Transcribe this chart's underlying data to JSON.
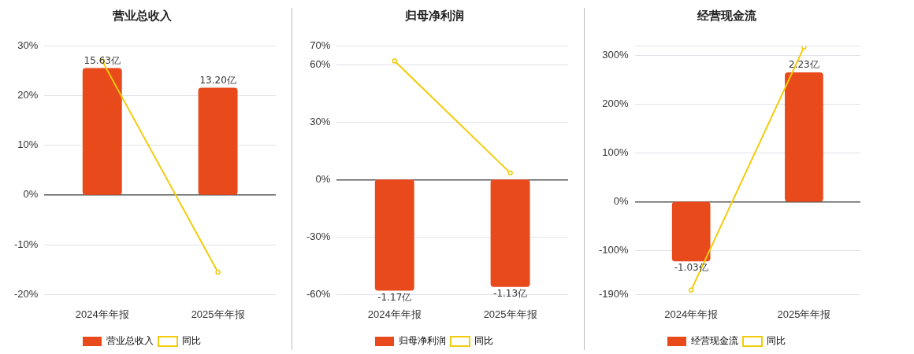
{
  "chart_data": [
    {
      "type": "bar",
      "title": "营业总收入",
      "categories": [
        "2024年年报",
        "2025年年报"
      ],
      "series": [
        {
          "name": "营业总收入",
          "axis": "y2",
          "color": "#e84a1c",
          "values": [
            15.63,
            13.2
          ],
          "value_labels": [
            "15.63亿",
            "13.20亿"
          ]
        },
        {
          "name": "同比",
          "type": "line",
          "axis": "y",
          "color": "#f2cc0c",
          "values": [
            26.9,
            -15.5
          ]
        }
      ],
      "ylim": [
        -20,
        30
      ],
      "yticks": [
        {
          "value": -20,
          "label": "-20%"
        },
        {
          "value": -10,
          "label": "-10%"
        },
        {
          "value": 0,
          "label": "0%"
        },
        {
          "value": 10,
          "label": "10%"
        },
        {
          "value": 20,
          "label": "20%"
        },
        {
          "value": 30,
          "label": "30%"
        }
      ],
      "y2lim": [
        -12.26,
        18.39
      ],
      "grid": "y",
      "legend": "bottom",
      "marker": "circle"
    },
    {
      "type": "bar",
      "title": "归母净利润",
      "categories": [
        "2024年年报",
        "2025年年报"
      ],
      "series": [
        {
          "name": "归母净利润",
          "axis": "y2",
          "color": "#e84a1c",
          "values": [
            -1.17,
            -1.13
          ],
          "value_labels": [
            "-1.17亿",
            "-1.13亿"
          ]
        },
        {
          "name": "同比",
          "type": "line",
          "axis": "y",
          "color": "#f2cc0c",
          "values": [
            62,
            3.5
          ]
        }
      ],
      "ylim": [
        -60,
        70
      ],
      "yticks": [
        {
          "value": -60,
          "label": "-60%"
        },
        {
          "value": -30,
          "label": "-30%"
        },
        {
          "value": 0,
          "label": "0%"
        },
        {
          "value": 30,
          "label": "30%"
        },
        {
          "value": 60,
          "label": "60%"
        },
        {
          "value": 70,
          "label": "70%"
        }
      ],
      "y2lim": [
        -1.21,
        1.41
      ],
      "grid": "y",
      "legend": "bottom",
      "marker": "circle"
    },
    {
      "type": "bar",
      "title": "经营现金流",
      "categories": [
        "2024年年报",
        "2025年年报"
      ],
      "series": [
        {
          "name": "经营现金流",
          "axis": "y2",
          "color": "#e84a1c",
          "values": [
            -1.03,
            2.23
          ],
          "value_labels": [
            "-1.03亿",
            "2.23亿"
          ]
        },
        {
          "name": "同比",
          "type": "line",
          "axis": "y",
          "color": "#f2cc0c",
          "values": [
            -181,
            317
          ]
        }
      ],
      "ylim": [
        -190,
        320
      ],
      "yticks": [
        {
          "value": -190,
          "label": "-190%"
        },
        {
          "value": -100,
          "label": "-100%"
        },
        {
          "value": 0,
          "label": "0%"
        },
        {
          "value": 100,
          "label": "100%"
        },
        {
          "value": 200,
          "label": "200%"
        },
        {
          "value": 300,
          "label": "300%"
        },
        {
          "value": 320,
          "label": null
        }
      ],
      "y2lim": [
        -1.6,
        2.69
      ],
      "grid": "y",
      "legend": "bottom",
      "marker": "circle"
    }
  ]
}
